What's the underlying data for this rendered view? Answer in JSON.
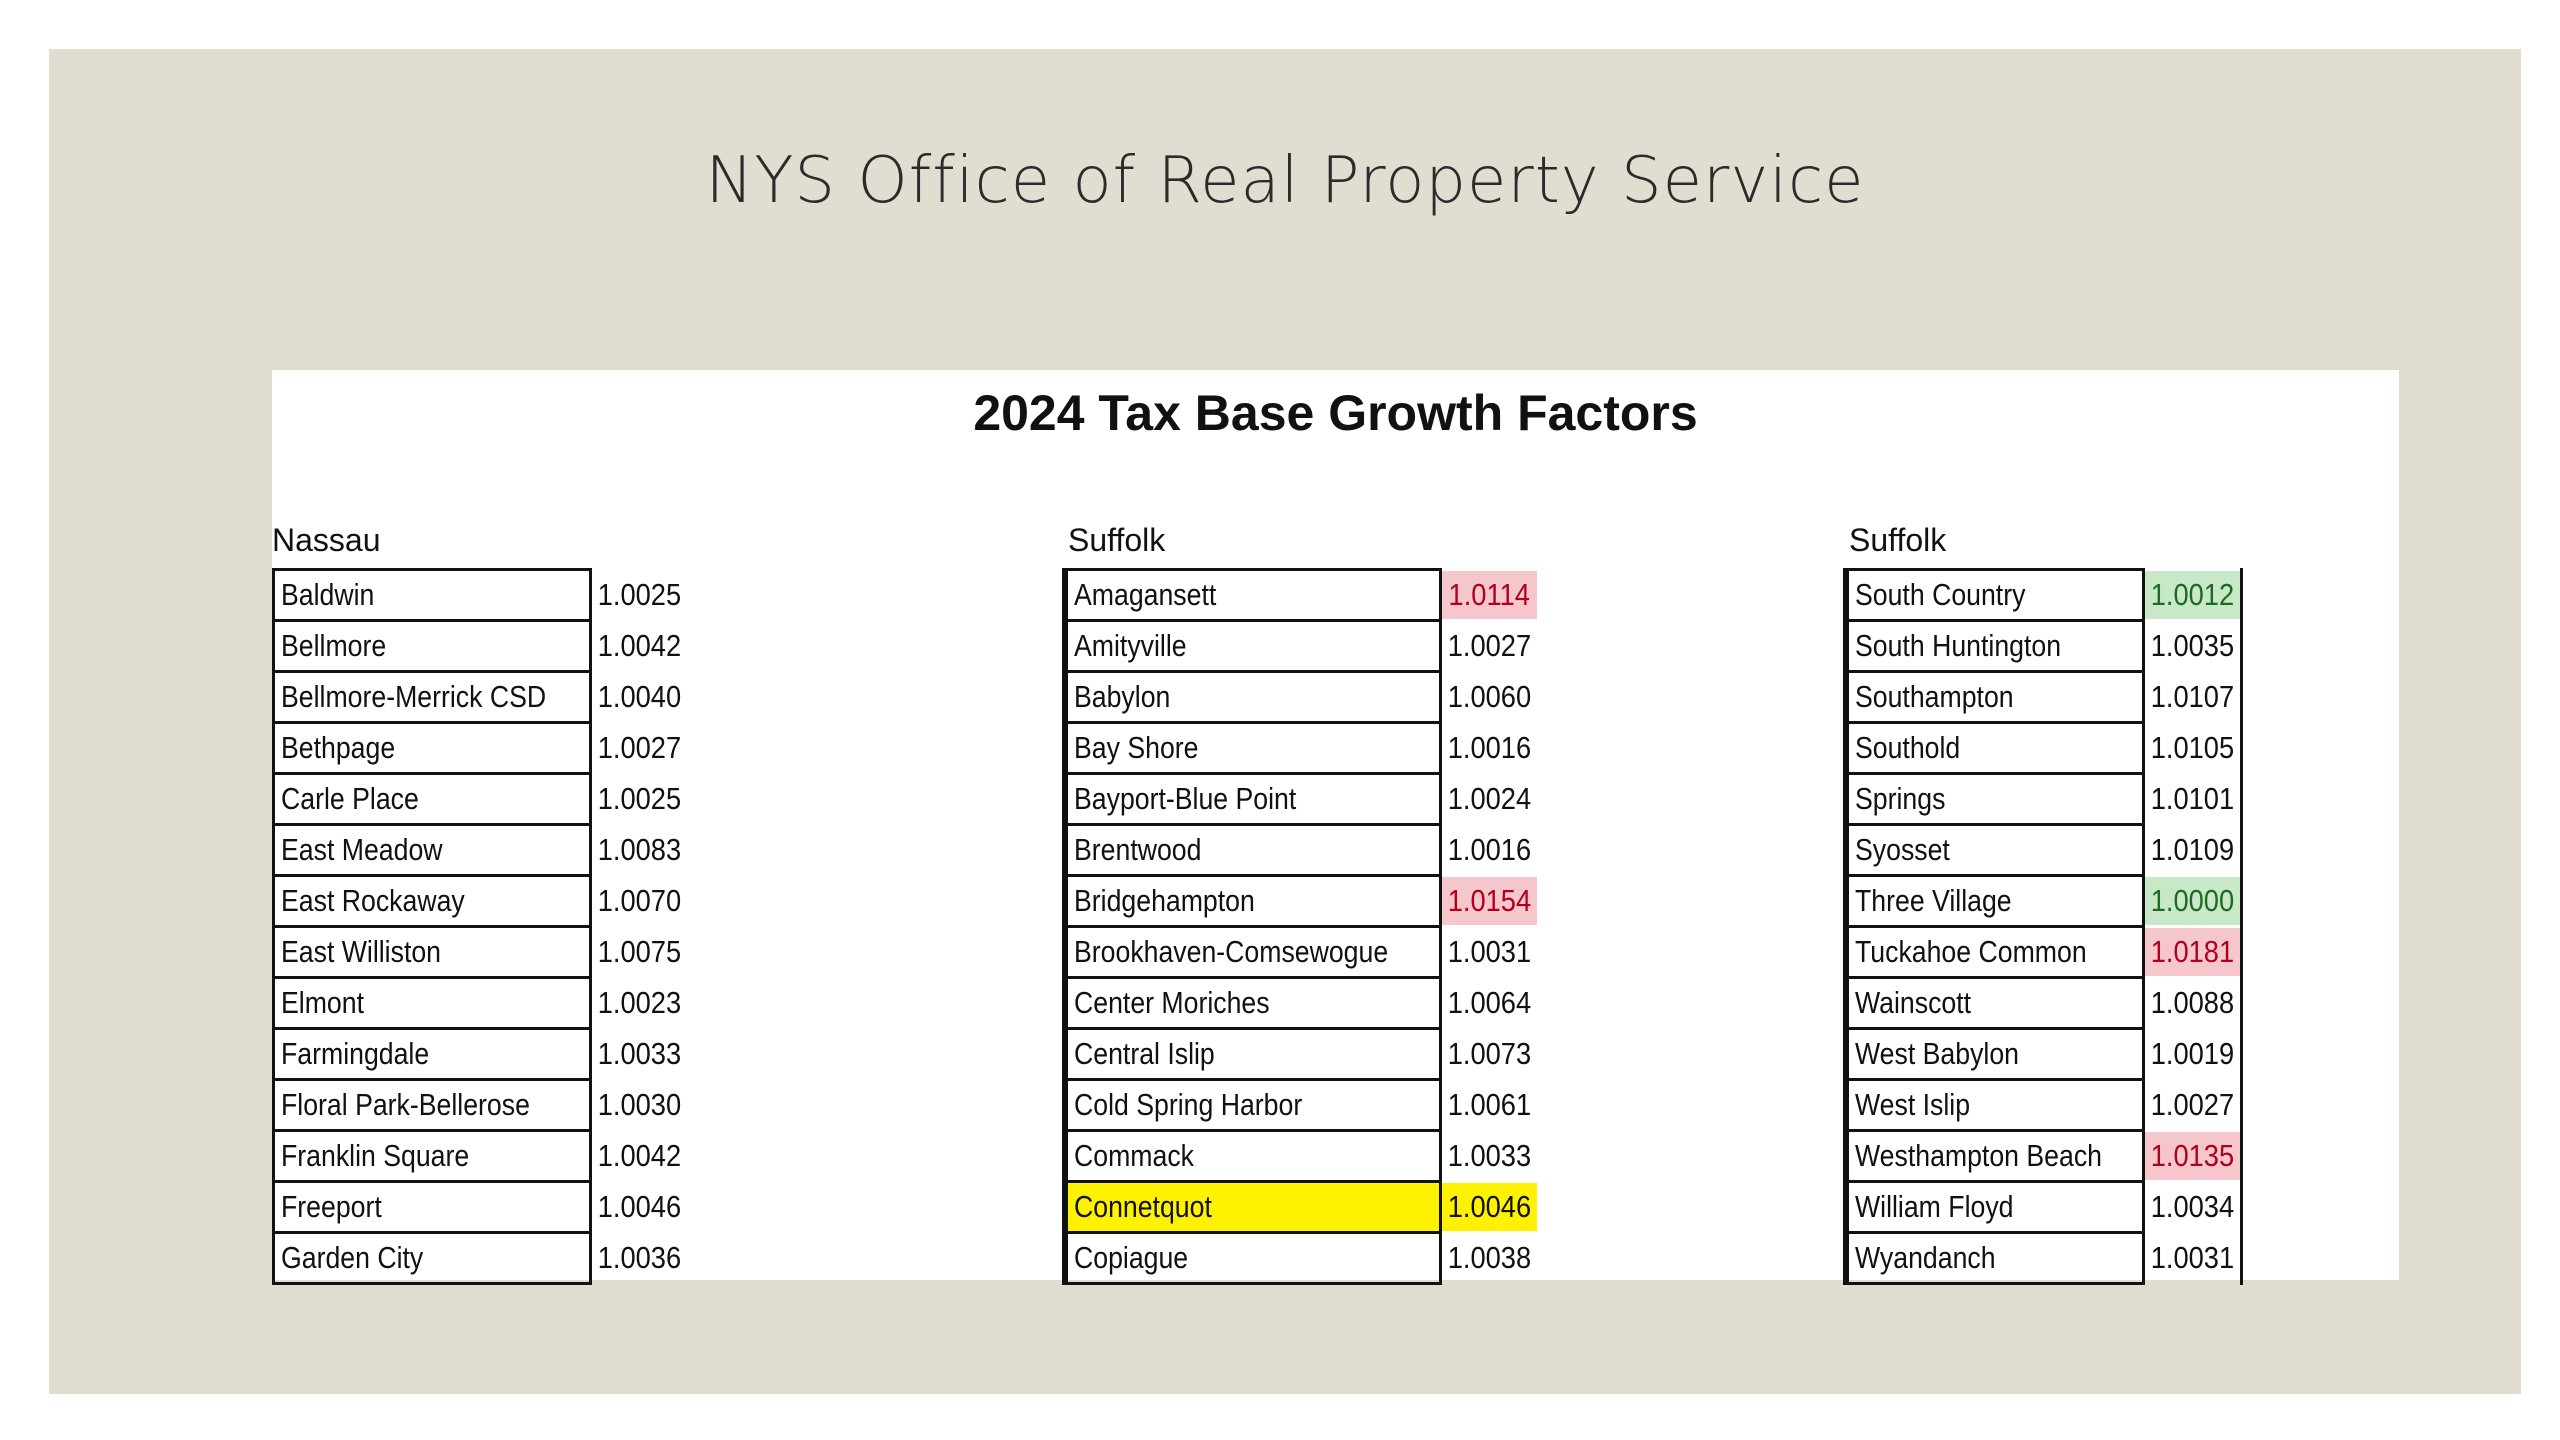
{
  "slide": {
    "title": "NYS Office of Real Property Service"
  },
  "sheet": {
    "title": "2024 Tax Base Growth Factors"
  },
  "colors": {
    "slide_background": "#e1ddd1",
    "high_value_fill": "#f5c7cc",
    "high_value_text": "#b0001b",
    "low_value_fill": "#c9e8c8",
    "low_value_text": "#1d6b22",
    "highlighter": "#fff200"
  },
  "groups": [
    {
      "label": "Nassau",
      "rows": [
        {
          "name": "Baldwin",
          "value": "1.0025"
        },
        {
          "name": "Bellmore",
          "value": "1.0042"
        },
        {
          "name": "Bellmore-Merrick CSD",
          "value": "1.0040"
        },
        {
          "name": "Bethpage",
          "value": "1.0027"
        },
        {
          "name": "Carle Place",
          "value": "1.0025"
        },
        {
          "name": "East Meadow",
          "value": "1.0083"
        },
        {
          "name": "East Rockaway",
          "value": "1.0070"
        },
        {
          "name": "East Williston",
          "value": "1.0075"
        },
        {
          "name": "Elmont",
          "value": "1.0023"
        },
        {
          "name": "Farmingdale",
          "value": "1.0033"
        },
        {
          "name": "Floral Park-Bellerose",
          "value": "1.0030"
        },
        {
          "name": "Franklin Square",
          "value": "1.0042"
        },
        {
          "name": "Freeport",
          "value": "1.0046"
        },
        {
          "name": "Garden City",
          "value": "1.0036"
        }
      ]
    },
    {
      "label": "Suffolk",
      "rows": [
        {
          "name": "Amagansett",
          "value": "1.0114",
          "status": "high"
        },
        {
          "name": "Amityville",
          "value": "1.0027"
        },
        {
          "name": "Babylon",
          "value": "1.0060"
        },
        {
          "name": "Bay Shore",
          "value": "1.0016"
        },
        {
          "name": "Bayport-Blue Point",
          "value": "1.0024"
        },
        {
          "name": "Brentwood",
          "value": "1.0016"
        },
        {
          "name": "Bridgehampton",
          "value": "1.0154",
          "status": "high"
        },
        {
          "name": "Brookhaven-Comsewogue",
          "value": "1.0031"
        },
        {
          "name": "Center Moriches",
          "value": "1.0064"
        },
        {
          "name": "Central Islip",
          "value": "1.0073"
        },
        {
          "name": "Cold Spring Harbor",
          "value": "1.0061"
        },
        {
          "name": "Commack",
          "value": "1.0033"
        },
        {
          "name": "Connetquot",
          "value": "1.0046",
          "highlighted": true
        },
        {
          "name": "Copiague",
          "value": "1.0038"
        }
      ]
    },
    {
      "label": "Suffolk",
      "rows": [
        {
          "name": "South Country",
          "value": "1.0012",
          "status": "low"
        },
        {
          "name": "South Huntington",
          "value": "1.0035"
        },
        {
          "name": "Southampton",
          "value": "1.0107"
        },
        {
          "name": "Southold",
          "value": "1.0105"
        },
        {
          "name": "Springs",
          "value": "1.0101"
        },
        {
          "name": "Syosset",
          "value": "1.0109"
        },
        {
          "name": "Three Village",
          "value": "1.0000",
          "status": "low"
        },
        {
          "name": "Tuckahoe Common",
          "value": "1.0181",
          "status": "high"
        },
        {
          "name": "Wainscott",
          "value": "1.0088"
        },
        {
          "name": "West Babylon",
          "value": "1.0019"
        },
        {
          "name": "West Islip",
          "value": "1.0027"
        },
        {
          "name": "Westhampton Beach",
          "value": "1.0135",
          "status": "high"
        },
        {
          "name": "William Floyd",
          "value": "1.0034"
        },
        {
          "name": "Wyandanch",
          "value": "1.0031"
        }
      ]
    }
  ]
}
